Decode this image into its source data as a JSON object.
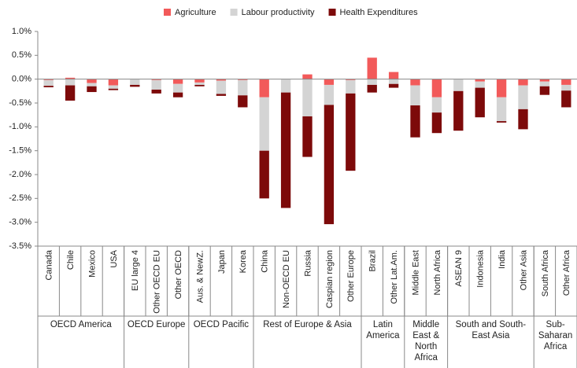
{
  "chart_data": {
    "type": "stacked_bar",
    "categories": [
      "Canada",
      "Chile",
      "Mexico",
      "USA",
      "EU large 4",
      "Other OECD EU",
      "Other OECD",
      "Aus. & NewZ.",
      "Japan",
      "Korea",
      "China",
      "Non-OECD EU",
      "Russia",
      "Caspian region",
      "Other Europe",
      "Brazil",
      "Other Lat.Am.",
      "Middle East",
      "North Africa",
      "ASEAN 9",
      "Indonesia",
      "India",
      "Other Asia",
      "South Africa",
      "Other Africa"
    ],
    "groups": [
      {
        "name": "OECD America",
        "count": 4
      },
      {
        "name": "OECD Europe",
        "count": 3
      },
      {
        "name": "OECD Pacific",
        "count": 3
      },
      {
        "name": "Rest of Europe & Asia",
        "count": 5
      },
      {
        "name": "Latin America",
        "count": 2
      },
      {
        "name": "Middle East & North Africa",
        "count": 2
      },
      {
        "name": "South and South-East Asia",
        "count": 4
      },
      {
        "name": "Sub-Saharan Africa",
        "count": 2
      }
    ],
    "series": [
      {
        "name": "Agriculture",
        "color": "#f25a5a",
        "values": [
          -0.02,
          0.03,
          -0.08,
          -0.13,
          0,
          -0.02,
          -0.1,
          -0.07,
          -0.03,
          -0.02,
          -0.38,
          0,
          0.1,
          -0.12,
          -0.02,
          0.45,
          0.15,
          -0.13,
          -0.38,
          0,
          -0.05,
          -0.38,
          -0.13,
          -0.05,
          -0.12
        ]
      },
      {
        "name": "Labour productivity",
        "color": "#d4d4d4",
        "values": [
          -0.12,
          -0.13,
          -0.07,
          -0.07,
          -0.12,
          -0.2,
          -0.18,
          -0.05,
          -0.28,
          -0.32,
          -1.12,
          -0.28,
          -0.78,
          -0.42,
          -0.28,
          -0.12,
          -0.1,
          -0.42,
          -0.32,
          -0.25,
          -0.13,
          -0.5,
          -0.5,
          -0.1,
          -0.12
        ]
      },
      {
        "name": "Health Expenditures",
        "color": "#7d0a0a",
        "values": [
          -0.03,
          -0.32,
          -0.12,
          -0.03,
          -0.04,
          -0.08,
          -0.1,
          -0.03,
          -0.04,
          -0.25,
          -1.0,
          -2.42,
          -0.85,
          -2.5,
          -1.62,
          -0.16,
          -0.08,
          -0.67,
          -0.43,
          -0.83,
          -0.62,
          -0.03,
          -0.42,
          -0.18,
          -0.35
        ]
      }
    ],
    "ylim": [
      -3.5,
      1.0
    ],
    "yticks": [
      {
        "value": -3.5,
        "label": "-3.5%"
      },
      {
        "value": -3.0,
        "label": "-3.0%"
      },
      {
        "value": -2.5,
        "label": "-2.5%"
      },
      {
        "value": -2.0,
        "label": "-2.0%"
      },
      {
        "value": -1.5,
        "label": "-1.5%"
      },
      {
        "value": -1.0,
        "label": "-1.0%"
      },
      {
        "value": -0.5,
        "label": "-0.5%"
      },
      {
        "value": 0,
        "label": "0.0%"
      },
      {
        "value": 0.5,
        "label": "0.5%"
      },
      {
        "value": 1.0,
        "label": "1.0%"
      }
    ],
    "legend": "top"
  }
}
